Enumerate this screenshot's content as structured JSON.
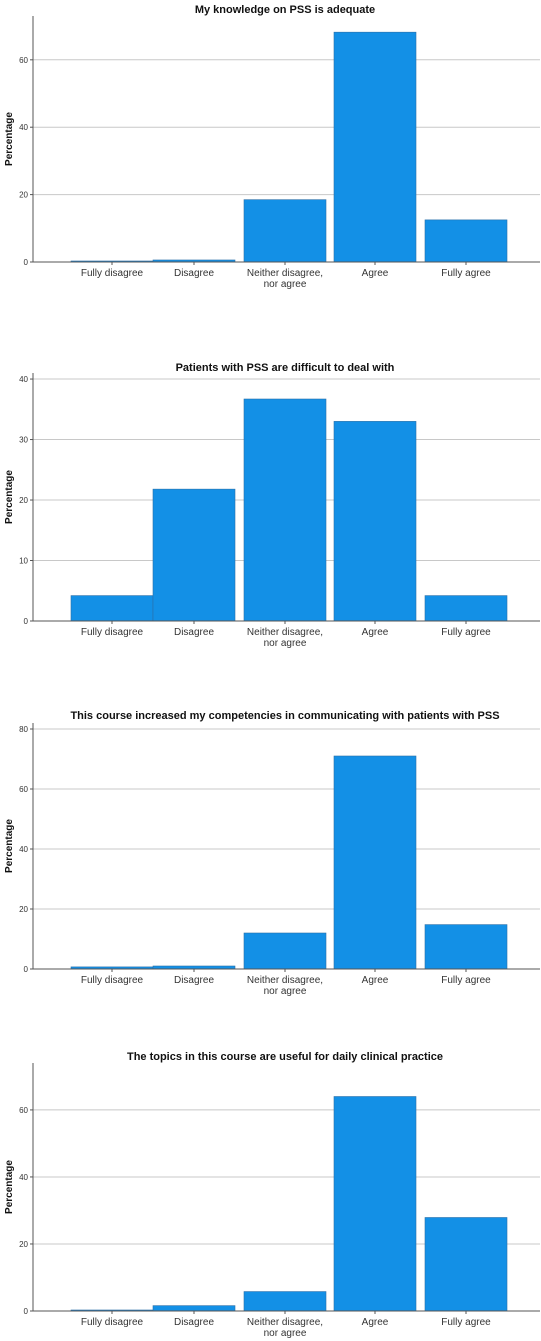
{
  "chart_data": [
    {
      "type": "bar",
      "title": "My knowledge on PSS is adequate",
      "ylabel": "Percentage",
      "xlabel": "",
      "categories": [
        "Fully disagree",
        "Disagree",
        "Neither disagree, nor agree",
        "Agree",
        "Fully agree"
      ],
      "category_lines": [
        [
          "Fully disagree"
        ],
        [
          "Disagree"
        ],
        [
          "Neither disagree,",
          "nor agree"
        ],
        [
          "Agree"
        ],
        [
          "Fully agree"
        ]
      ],
      "values": [
        0.3,
        0.6,
        18.5,
        68.2,
        12.5
      ],
      "ylim": [
        0,
        73
      ],
      "yticks": [
        0,
        20,
        40,
        60
      ],
      "grid": true,
      "bar_color": "#1390E6"
    },
    {
      "type": "bar",
      "title": "Patients with PSS are difficult to deal with",
      "ylabel": "Percentage",
      "xlabel": "",
      "categories": [
        "Fully disagree",
        "Disagree",
        "Neither disagree, nor agree",
        "Agree",
        "Fully agree"
      ],
      "category_lines": [
        [
          "Fully disagree"
        ],
        [
          "Disagree"
        ],
        [
          "Neither disagree,",
          "nor agree"
        ],
        [
          "Agree"
        ],
        [
          "Fully agree"
        ]
      ],
      "values": [
        4.2,
        21.8,
        36.7,
        33.0,
        4.2
      ],
      "ylim": [
        0,
        41
      ],
      "yticks": [
        0,
        10,
        20,
        30,
        40
      ],
      "grid": true,
      "bar_color": "#1390E6"
    },
    {
      "type": "bar",
      "title": "This course increased my competencies in communicating with patients with PSS",
      "ylabel": "Percentage",
      "xlabel": "",
      "categories": [
        "Fully disagree",
        "Disagree",
        "Neither disagree, nor agree",
        "Agree",
        "Fully agree"
      ],
      "category_lines": [
        [
          "Fully disagree"
        ],
        [
          "Disagree"
        ],
        [
          "Neither disagree,",
          "nor agree"
        ],
        [
          "Agree"
        ],
        [
          "Fully agree"
        ]
      ],
      "values": [
        0.7,
        1.0,
        12.0,
        71.0,
        14.8
      ],
      "ylim": [
        0,
        82
      ],
      "yticks": [
        0,
        20,
        40,
        60,
        80
      ],
      "grid": true,
      "bar_color": "#1390E6"
    },
    {
      "type": "bar",
      "title": "The topics in this course are useful for daily clinical practice",
      "ylabel": "Percentage",
      "xlabel": "",
      "categories": [
        "Fully disagree",
        "Disagree",
        "Neither disagree, nor agree",
        "Agree",
        "Fully agree"
      ],
      "category_lines": [
        [
          "Fully disagree"
        ],
        [
          "Disagree"
        ],
        [
          "Neither disagree,",
          "nor agree"
        ],
        [
          "Agree"
        ],
        [
          "Fully agree"
        ]
      ],
      "values": [
        0.3,
        1.6,
        5.8,
        64.0,
        27.9
      ],
      "ylim": [
        0,
        74
      ],
      "yticks": [
        0,
        20,
        40,
        60
      ],
      "grid": true,
      "bar_color": "#1390E6"
    }
  ]
}
